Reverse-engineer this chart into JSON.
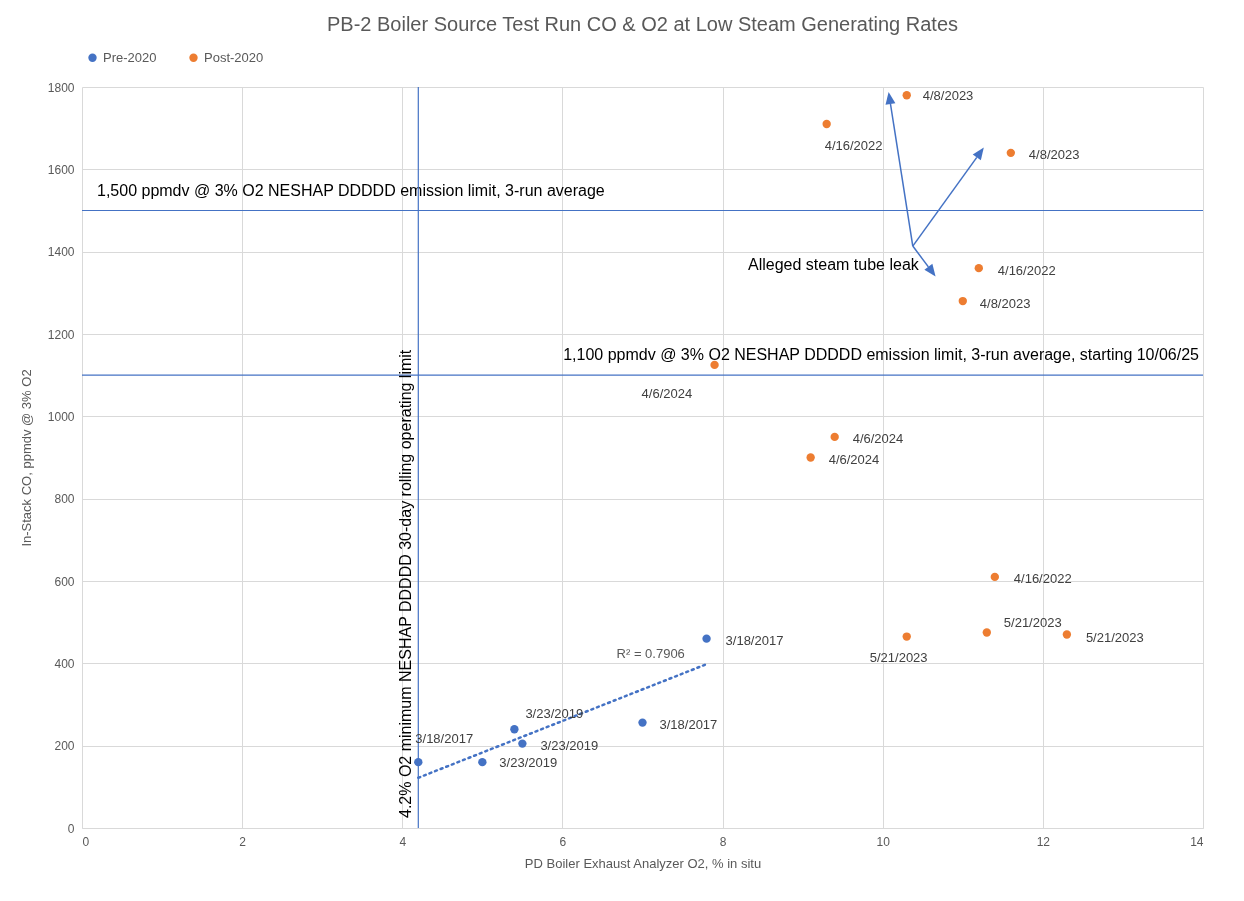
{
  "chart_data": {
    "type": "scatter",
    "title": "PB-2 Boiler Source Test Run CO & O2 at Low Steam Generating Rates",
    "xlabel": "PD Boiler Exhaust Analyzer O2, % in situ",
    "ylabel": "In-Stack CO, ppmdv @ 3% O2",
    "xlim": [
      0,
      14
    ],
    "xticks": [
      0,
      2,
      4,
      6,
      8,
      10,
      12,
      14
    ],
    "ylim": [
      0,
      1800
    ],
    "yticks": [
      0,
      200,
      400,
      600,
      800,
      1000,
      1200,
      1400,
      1600,
      1800
    ],
    "grid": true,
    "legend": "top",
    "marker": "circle",
    "series": [
      {
        "name": "Pre-2020",
        "color": "#4472c4",
        "x": [
          4.2,
          5.0,
          5.4,
          5.5,
          7.0,
          7.8
        ],
        "values": [
          160,
          160,
          240,
          205,
          256,
          460
        ]
      },
      {
        "name": "Post-2020",
        "color": "#ed7d31",
        "x": [
          9.3,
          10.3,
          11.6,
          11.2,
          11.0,
          7.9,
          9.4,
          9.1,
          11.4,
          10.3,
          11.3,
          12.3
        ],
        "values": [
          1710,
          1780,
          1640,
          1360,
          1280,
          1125,
          950,
          900,
          610,
          465,
          475,
          470
        ]
      },
      {
        "type": "line",
        "color": "#4472c4",
        "line_style": "dotted",
        "marker": "none",
        "x": [
          4.2,
          7.8
        ],
        "values": [
          122,
          398
        ]
      }
    ],
    "ref_lines": [
      {
        "axis": "y",
        "value": 1500,
        "label": "1,500 ppmdv @ 3% O2 NESHAP DDDDD emission limit, 3-run average",
        "color": "#4472c4"
      },
      {
        "axis": "y",
        "value": 1100,
        "label": "1,100 ppmdv @ 3% O2 NESHAP DDDDD emission limit, 3-run average, starting 10/06/25",
        "color": "#4472c4"
      },
      {
        "axis": "x",
        "value": 4.2,
        "label": "4.2% O2 minimum NESHAP DDDDD 30-day rolling operating limit",
        "color": "#4472c4"
      }
    ],
    "annotations": [
      {
        "text": "3/18/2017",
        "x": 4.2,
        "y": 160
      },
      {
        "text": "3/23/2019",
        "x": 5.0,
        "y": 160
      },
      {
        "text": "3/23/2019",
        "x": 5.4,
        "y": 240
      },
      {
        "text": "3/23/2019",
        "x": 5.5,
        "y": 205
      },
      {
        "text": "3/18/2017",
        "x": 7.0,
        "y": 256
      },
      {
        "text": "3/18/2017",
        "x": 7.8,
        "y": 460
      },
      {
        "text": "4/16/2022",
        "x": 9.3,
        "y": 1710
      },
      {
        "text": "4/8/2023",
        "x": 10.3,
        "y": 1780
      },
      {
        "text": "4/8/2023",
        "x": 11.6,
        "y": 1640
      },
      {
        "text": "4/16/2022",
        "x": 11.2,
        "y": 1360
      },
      {
        "text": "4/8/2023",
        "x": 11.0,
        "y": 1280
      },
      {
        "text": "4/6/2024",
        "x": 7.9,
        "y": 1125
      },
      {
        "text": "4/6/2024",
        "x": 9.4,
        "y": 950
      },
      {
        "text": "4/6/2024",
        "x": 9.1,
        "y": 900
      },
      {
        "text": "4/16/2022",
        "x": 11.4,
        "y": 610
      },
      {
        "text": "5/21/2023",
        "x": 10.3,
        "y": 465
      },
      {
        "text": "5/21/2023",
        "x": 11.3,
        "y": 475
      },
      {
        "text": "5/21/2023",
        "x": 12.3,
        "y": 470
      },
      "R² = 0.7906",
      "Alleged steam tube leak"
    ]
  }
}
